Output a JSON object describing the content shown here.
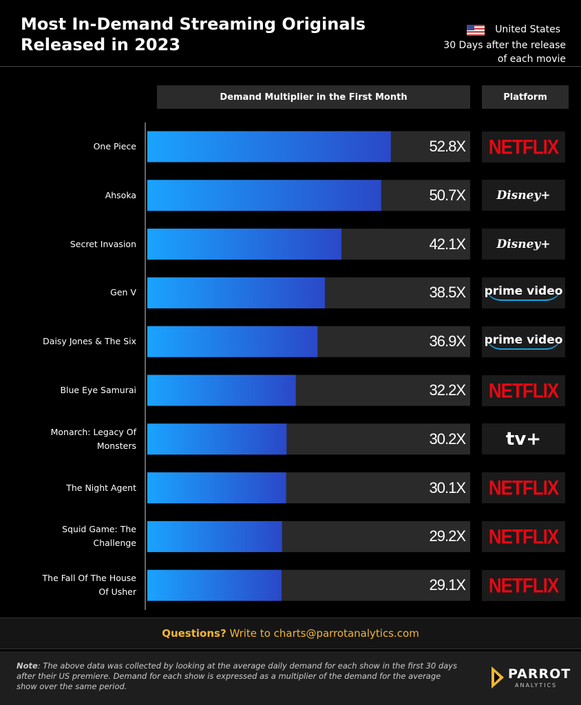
{
  "header": {
    "title": "Most In-Demand Streaming Originals Released in 2023",
    "region": "United States",
    "subtitle": "30 Days after the release of each movie"
  },
  "chart_data": {
    "type": "bar",
    "orientation": "horizontal",
    "value_title": "Demand Multiplier in the First Month",
    "platform_title": "Platform",
    "categories": [
      "One Piece",
      "Ahsoka",
      "Secret Invasion",
      "Gen V",
      "Daisy Jones & The Six",
      "Blue Eye Samurai",
      "Monarch: Legacy Of Monsters",
      "The Night Agent",
      "Squid Game: The Challenge",
      "The Fall Of The House Of Usher"
    ],
    "values": [
      52.8,
      50.7,
      42.1,
      38.5,
      36.9,
      32.2,
      30.2,
      30.1,
      29.2,
      29.1
    ],
    "value_labels": [
      "52.8X",
      "50.7X",
      "42.1X",
      "38.5X",
      "36.9X",
      "32.2X",
      "30.2X",
      "30.1X",
      "29.2X",
      "29.1X"
    ],
    "platforms": [
      "NETFLIX",
      "Disney+",
      "Disney+",
      "prime video",
      "prime video",
      "NETFLIX",
      "tv+",
      "NETFLIX",
      "NETFLIX",
      "NETFLIX"
    ],
    "xlim": [
      0,
      70
    ],
    "color": "#1aa3ff"
  },
  "footer": {
    "question": "Questions?",
    "contact": "Write to charts@parrotanalytics.com",
    "note_label": "Note",
    "note": ": The above data was collected by looking at the average daily demand for each show in the first 30 days after their US premiere. Demand for each show is expressed as a multiplier of the demand for the average show over the same period.",
    "logo": "PARROT",
    "logo_sub": "ANALYTICS"
  }
}
